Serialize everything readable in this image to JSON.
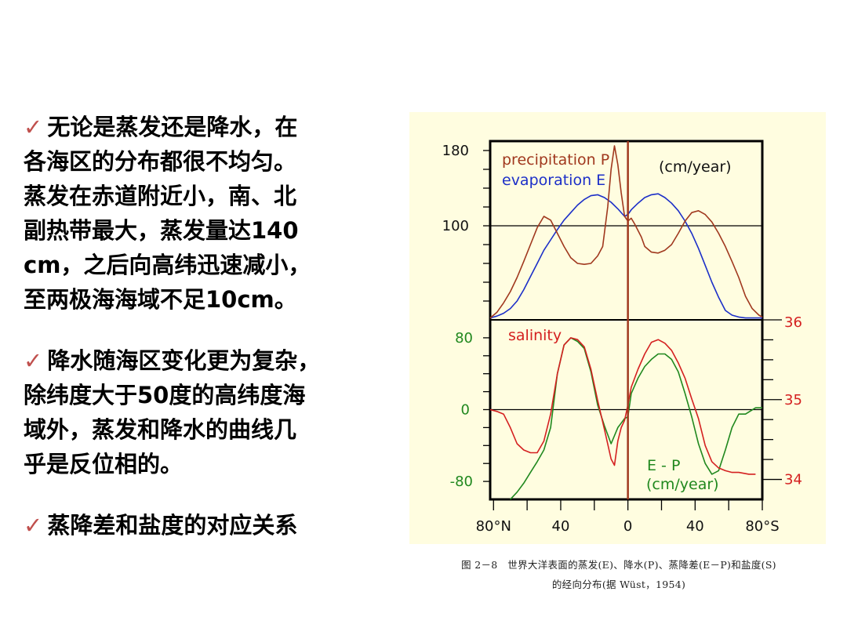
{
  "bullets": [
    "无论是蒸发还是降水，在各海区的分布都很不均匀。蒸发在赤道附近小，南、北副热带最大，蒸发量达140 cm，之后向高纬迅速减小，至两极海海域不足10cm。",
    "降水随海区变化更为复杂，除纬度大于50度的高纬度海域外，蒸发和降水的曲线几乎是反位相的。",
    "蒸降差和盐度的对应关系"
  ],
  "bullet_lines": [
    [
      "无论是蒸发还是降水，在",
      "各海区的分布都很不均匀。",
      "蒸发在赤道附近小，南、北",
      "副热带最大，蒸发量达140",
      "cm，之后向高纬迅速减小，",
      "至两极海海域不足10cm。"
    ],
    [
      "降水随海区变化更为复杂，",
      "除纬度大于50度的高纬度海",
      "域外，蒸发和降水的曲线几",
      "乎是反位相的。"
    ],
    [
      "蒸降差和盐度的对应关系"
    ]
  ],
  "check_glyph": "✓",
  "caption_line1": "图 2－8　世界大洋表面的蒸发(E)、降水(P)、蒸降差(E－P)和盐度(S)",
  "caption_line2": "的经向分布(据 Wüst，1954)",
  "colors": {
    "background_panel": "#fffde0",
    "precipitation": "#a0381e",
    "evaporation": "#1c2fc8",
    "salinity": "#d42020",
    "e_minus_p": "#20881e",
    "bullet_check": "#c0504d",
    "center_line": "#a0381e"
  },
  "chart_data": [
    {
      "type": "line",
      "title": "",
      "unit_label": "(cm/year)",
      "x_tick_labels": [
        "80°N",
        "40",
        "0",
        "40",
        "80°S"
      ],
      "y_tick_labels": [
        "180",
        "100"
      ],
      "ylim": [
        0,
        190
      ],
      "xlim": [
        -82,
        80
      ],
      "series": [
        {
          "name": "precipitation P",
          "x": [
            -82,
            -78,
            -74,
            -70,
            -66,
            -62,
            -58,
            -54,
            -50,
            -46,
            -42,
            -38,
            -34,
            -30,
            -26,
            -22,
            -18,
            -15,
            -12,
            -10,
            -8,
            -6,
            -4,
            -2,
            0,
            2,
            4,
            6,
            8,
            10,
            14,
            18,
            22,
            26,
            30,
            34,
            38,
            42,
            46,
            50,
            54,
            58,
            62,
            66,
            70,
            74,
            78,
            80
          ],
          "y": [
            2,
            8,
            18,
            30,
            45,
            62,
            80,
            98,
            110,
            106,
            92,
            78,
            66,
            60,
            59,
            60,
            68,
            78,
            120,
            160,
            185,
            165,
            135,
            110,
            105,
            108,
            102,
            95,
            88,
            78,
            72,
            71,
            74,
            80,
            92,
            105,
            114,
            116,
            112,
            104,
            92,
            78,
            62,
            45,
            25,
            12,
            5,
            3
          ]
        },
        {
          "name": "evaporation E",
          "x": [
            -82,
            -78,
            -74,
            -70,
            -66,
            -62,
            -58,
            -54,
            -50,
            -46,
            -42,
            -38,
            -34,
            -30,
            -26,
            -22,
            -18,
            -14,
            -10,
            -6,
            -2,
            0,
            2,
            6,
            10,
            14,
            18,
            22,
            26,
            30,
            34,
            38,
            42,
            46,
            50,
            54,
            58,
            62,
            66,
            70,
            74,
            78,
            80
          ],
          "y": [
            2,
            4,
            7,
            12,
            20,
            32,
            46,
            60,
            74,
            85,
            96,
            106,
            114,
            122,
            128,
            132,
            133,
            130,
            125,
            118,
            110,
            112,
            117,
            124,
            130,
            133,
            134,
            130,
            124,
            116,
            105,
            92,
            76,
            58,
            40,
            24,
            10,
            5,
            3,
            2,
            2,
            2,
            2
          ]
        }
      ]
    },
    {
      "type": "line",
      "title": "",
      "unit_label": "(cm/year)",
      "x_tick_labels": [
        "80°N",
        "40",
        "0",
        "40",
        "80°S"
      ],
      "y_tick_labels": [
        "80",
        "0",
        "-80"
      ],
      "right_tick_labels": [
        "36",
        "35",
        "34"
      ],
      "ylim": [
        -100,
        100
      ],
      "xlim": [
        -82,
        80
      ],
      "series": [
        {
          "name": "salinity",
          "x": [
            -82,
            -78,
            -74,
            -70,
            -66,
            -62,
            -58,
            -54,
            -50,
            -46,
            -42,
            -38,
            -34,
            -30,
            -26,
            -22,
            -18,
            -14,
            -10,
            -8,
            -6,
            -4,
            -2,
            0,
            2,
            6,
            10,
            14,
            18,
            22,
            26,
            30,
            34,
            38,
            42,
            46,
            50,
            54,
            58,
            62,
            66,
            72,
            76
          ],
          "y": [
            0,
            -2,
            -5,
            -20,
            -38,
            -45,
            -48,
            -48,
            -35,
            -5,
            40,
            72,
            80,
            78,
            70,
            45,
            10,
            -22,
            -55,
            -62,
            -35,
            -20,
            -12,
            5,
            25,
            45,
            62,
            75,
            78,
            74,
            66,
            52,
            35,
            12,
            -10,
            -40,
            -58,
            -65,
            -68,
            -70,
            -70,
            -72,
            -72
          ]
        },
        {
          "name": "E - P",
          "x": [
            -70,
            -66,
            -62,
            -58,
            -54,
            -50,
            -46,
            -42,
            -38,
            -34,
            -30,
            -26,
            -22,
            -18,
            -14,
            -10,
            -6,
            -4,
            -2,
            0,
            2,
            6,
            10,
            14,
            18,
            22,
            26,
            30,
            34,
            38,
            42,
            46,
            50,
            54,
            58,
            62,
            66,
            70,
            76,
            80
          ],
          "y": [
            -100,
            -92,
            -82,
            -70,
            -58,
            -45,
            -20,
            40,
            72,
            80,
            76,
            68,
            42,
            5,
            -18,
            -38,
            -20,
            -15,
            -10,
            -8,
            18,
            35,
            48,
            56,
            62,
            62,
            56,
            42,
            18,
            -8,
            -38,
            -60,
            -72,
            -68,
            -45,
            -20,
            -5,
            -5,
            2,
            2
          ]
        }
      ]
    }
  ],
  "chart_labels": {
    "precipitation": "precipitation P",
    "evaporation": "evaporation E",
    "salinity": "salinity",
    "ep_line1": "E - P",
    "ep_line2": "(cm/year)"
  }
}
